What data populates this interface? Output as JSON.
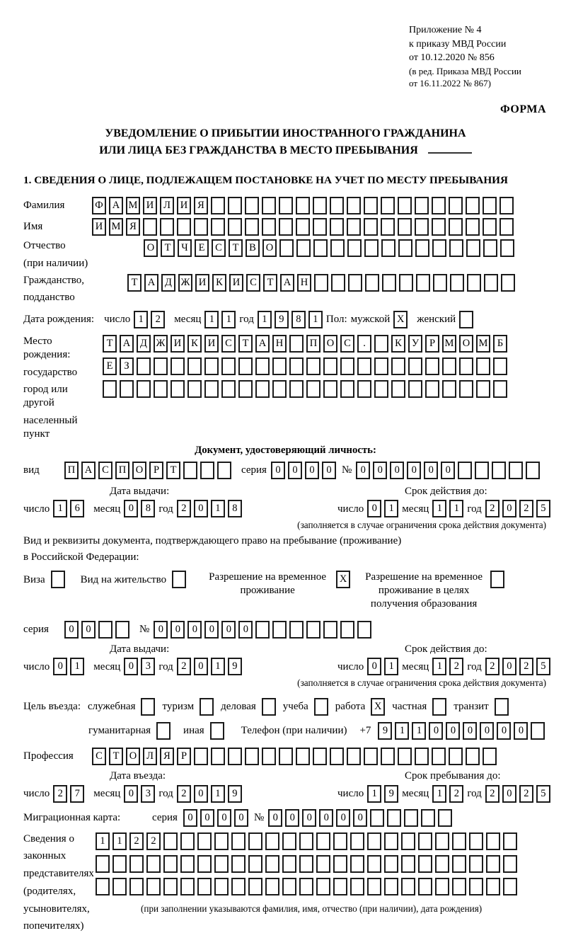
{
  "header": {
    "appendix_lines": [
      "Приложение № 4",
      "к приказу МВД России",
      "от 10.12.2020 № 856"
    ],
    "revision_lines": [
      "(в ред. Приказа МВД России",
      "от 16.11.2022 № 867)"
    ],
    "form_label": "ФОРМА"
  },
  "title": {
    "line1": "УВЕДОМЛЕНИЕ О ПРИБЫТИИ ИНОСТРАННОГО ГРАЖДАНИНА",
    "line2": "ИЛИ ЛИЦА БЕЗ ГРАЖДАНСТВА В МЕСТО ПРЕБЫВАНИЯ"
  },
  "section1_heading": "1. СВЕДЕНИЯ О ЛИЦЕ, ПОДЛЕЖАЩЕМ ПОСТАНОВКЕ НА УЧЕТ ПО МЕСТУ ПРЕБЫВАНИЯ",
  "shared": {
    "day": "число",
    "month": "месяц",
    "year": "год",
    "seria": "серия",
    "number": "№"
  },
  "person": {
    "surname": {
      "label": "Фамилия",
      "row": {
        "value": "ФАМИЛИЯ",
        "cells": 25
      }
    },
    "name": {
      "label": "Имя",
      "row": {
        "value": "ИМЯ",
        "cells": 25
      }
    },
    "patronymic": {
      "label": "Отчество",
      "label2": "(при наличии)",
      "row": {
        "value": "ОТЧЕСТВО",
        "cells": 22
      }
    },
    "citizenship": {
      "label": "Гражданство,",
      "label2": "подданство",
      "row": {
        "value": "ТАДЖИКИСТАН",
        "cells": 23
      }
    },
    "birth_date": {
      "label": "Дата рождения:",
      "day": {
        "value": "12",
        "cells": 2
      },
      "month": {
        "value": "11",
        "cells": 2
      },
      "year": {
        "value": "1981",
        "cells": 4
      },
      "gender_label": "Пол:",
      "male_label": "мужской",
      "male_box": {
        "value": "X",
        "cells": 1
      },
      "female_label": "женский",
      "female_box": {
        "value": "",
        "cells": 1
      }
    },
    "birth_place": {
      "label_lines": [
        "Место рождения:",
        "государство",
        "город или другой",
        "населенный пункт"
      ],
      "rows": [
        {
          "value": "ТАДЖИКИСТАН ПОС. КУРМОМБ",
          "cells": 24
        },
        {
          "value": "ЕЗ",
          "cells": 24
        },
        {
          "value": "",
          "cells": 24
        }
      ]
    }
  },
  "identity_doc": {
    "heading": "Документ, удостоверяющий личность:",
    "kind_label": "вид",
    "kind": {
      "value": "ПАСПОРТ",
      "cells": 10
    },
    "seria": {
      "value": "0000",
      "cells": 4
    },
    "number": {
      "value": "000000",
      "cells": 11
    },
    "issue_title": "Дата выдачи:",
    "issue": {
      "day": {
        "value": "16",
        "cells": 2
      },
      "month": {
        "value": "08",
        "cells": 2
      },
      "year": {
        "value": "2018",
        "cells": 4
      }
    },
    "valid_title": "Срок действия до:",
    "valid": {
      "day": {
        "value": "01",
        "cells": 2
      },
      "month": {
        "value": "11",
        "cells": 2
      },
      "year": {
        "value": "2025",
        "cells": 4
      }
    },
    "note": "(заполняется в случае ограничения срока действия документа)"
  },
  "residence_doc": {
    "intro_line1": "Вид и реквизиты документа, подтверждающего право на пребывание (проживание)",
    "intro_line2": "в Российской Федерации:",
    "options": [
      {
        "label": "Виза",
        "box": {
          "value": "",
          "cells": 1
        }
      },
      {
        "label": "Вид на жительство",
        "box": {
          "value": "",
          "cells": 1
        }
      },
      {
        "label": "Разрешение на временное проживание",
        "box": {
          "value": "X",
          "cells": 1
        }
      },
      {
        "label": "Разрешение на временное проживание в целях получения образования",
        "box": {
          "value": "",
          "cells": 1
        }
      }
    ],
    "seria": {
      "value": "00",
      "cells": 4
    },
    "number": {
      "value": "000000",
      "cells": 13
    },
    "issue_title": "Дата выдачи:",
    "issue": {
      "day": {
        "value": "01",
        "cells": 2
      },
      "month": {
        "value": "03",
        "cells": 2
      },
      "year": {
        "value": "2019",
        "cells": 4
      }
    },
    "valid_title": "Срок действия до:",
    "valid": {
      "day": {
        "value": "01",
        "cells": 2
      },
      "month": {
        "value": "12",
        "cells": 2
      },
      "year": {
        "value": "2025",
        "cells": 4
      }
    },
    "note": "(заполняется в случае ограничения срока действия документа)"
  },
  "visit": {
    "purpose_label": "Цель въезда:",
    "purpose_row1": [
      {
        "label": "служебная",
        "box": {
          "value": "",
          "cells": 1
        }
      },
      {
        "label": "туризм",
        "box": {
          "value": "",
          "cells": 1
        }
      },
      {
        "label": "деловая",
        "box": {
          "value": "",
          "cells": 1
        }
      },
      {
        "label": "учеба",
        "box": {
          "value": "",
          "cells": 1
        }
      },
      {
        "label": "работа",
        "box": {
          "value": "X",
          "cells": 1
        }
      },
      {
        "label": "частная",
        "box": {
          "value": "",
          "cells": 1
        }
      },
      {
        "label": "транзит",
        "box": {
          "value": "",
          "cells": 1
        }
      }
    ],
    "purpose_row2": [
      {
        "label": "гуманитарная",
        "box": {
          "value": "",
          "cells": 1
        }
      },
      {
        "label": "иная",
        "box": {
          "value": "",
          "cells": 1
        }
      }
    ],
    "phone_label": "Телефон (при наличии)",
    "phone_prefix": "+7",
    "phone": {
      "value": "911000000",
      "cells": 10
    },
    "profession": {
      "label": "Профессия",
      "row": {
        "value": "СТОЛЯР",
        "cells": 24
      }
    },
    "entry_title": "Дата въезда:",
    "entry": {
      "day": {
        "value": "27",
        "cells": 2
      },
      "month": {
        "value": "03",
        "cells": 2
      },
      "year": {
        "value": "2019",
        "cells": 4
      }
    },
    "stay_title": "Срок пребывания до:",
    "stay": {
      "day": {
        "value": "19",
        "cells": 2
      },
      "month": {
        "value": "12",
        "cells": 2
      },
      "year": {
        "value": "2025",
        "cells": 4
      }
    },
    "migration_card": {
      "label": "Миграционная карта:",
      "seria": {
        "value": "0000",
        "cells": 4
      },
      "number": {
        "value": "000000",
        "cells": 11
      }
    }
  },
  "representatives": {
    "label_lines": [
      "Сведения о",
      "законных",
      "представителях",
      "(родителях,",
      "усыновителях,",
      "попечителях)"
    ],
    "rows": [
      {
        "value": "1122",
        "cells": 25
      },
      {
        "value": "",
        "cells": 25
      },
      {
        "value": "",
        "cells": 25
      }
    ],
    "note": "(при заполнении указываются фамилия, имя, отчество (при наличии), дата рождения)"
  }
}
